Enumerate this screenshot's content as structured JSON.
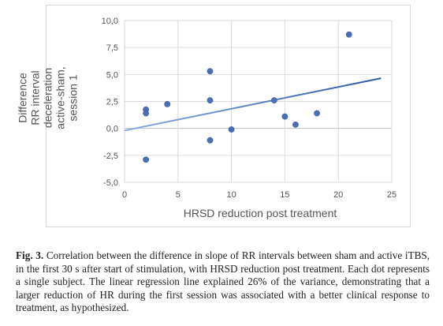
{
  "chart_data": {
    "type": "scatter",
    "title": "",
    "xlabel": "HRSD reduction post treatment",
    "ylabel": "Difference RR interval deceleration active-sham, session 1",
    "xlim": [
      0,
      25
    ],
    "ylim": [
      -5,
      10
    ],
    "x_ticks": [
      "0",
      "5",
      "10",
      "15",
      "20",
      "25"
    ],
    "y_ticks": [
      "-5,0",
      "-2,5",
      "0,0",
      "2,5",
      "5,0",
      "7,5",
      "10,0"
    ],
    "grid": true,
    "points": [
      {
        "x": 2,
        "y": 1.75
      },
      {
        "x": 2,
        "y": 1.4
      },
      {
        "x": 2,
        "y": -2.9
      },
      {
        "x": 4,
        "y": 2.25
      },
      {
        "x": 8,
        "y": 5.3
      },
      {
        "x": 8,
        "y": 2.6
      },
      {
        "x": 8,
        "y": -1.1
      },
      {
        "x": 10,
        "y": -0.1
      },
      {
        "x": 14,
        "y": 2.6
      },
      {
        "x": 15,
        "y": 1.1
      },
      {
        "x": 16,
        "y": 0.35
      },
      {
        "x": 18,
        "y": 1.4
      },
      {
        "x": 21,
        "y": 8.7
      }
    ],
    "trendline": {
      "x": [
        0,
        24
      ],
      "y": [
        -0.2,
        4.65
      ]
    },
    "colors": {
      "point": "#4a6fb5",
      "trend_start": "#8aaee0",
      "trend_end": "#2f58a8",
      "grid": "#d9d9d9"
    }
  },
  "caption": {
    "label": "Fig. 3.",
    "text": "Correlation between the difference in slope of RR intervals between sham and active iTBS, in the first 30 s after start of stimulation, with HRSD reduction post treatment. Each dot represents a single subject. The linear regression line explained 26% of the variance, demonstrating that a larger reduction of HR during the first session was associated with a better clinical response to treatment, as hypothesized."
  }
}
